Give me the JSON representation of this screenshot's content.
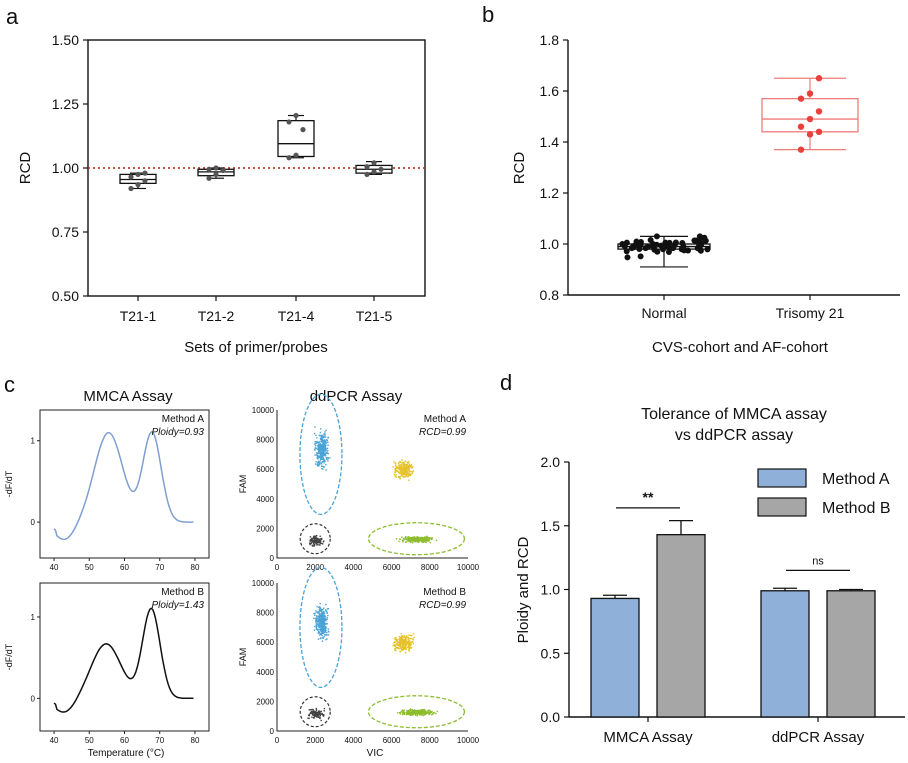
{
  "colors": {
    "ref_line": "#c0392b",
    "normal": "#111111",
    "trisomy": "#e8413c",
    "trisomy_box": "#f07b7b",
    "blue_trace": "#7f9fd0",
    "method_a": "#8fb0d8",
    "method_b": "#a6a6a6",
    "cluster_blue": "#4aa3d6",
    "cluster_yellow": "#e6c22a",
    "cluster_green": "#8dbd2f",
    "cluster_dark": "#444444"
  },
  "chart_data": [
    {
      "panel": "a",
      "type": "box",
      "categories": [
        "T21-1",
        "T21-2",
        "T21-4",
        "T21-5"
      ],
      "xlabel": "Sets of primer/probes",
      "ylabel": "RCD",
      "ylim": [
        0.5,
        1.5
      ],
      "yticks": [
        "0.50",
        "0.75",
        "1.00",
        "1.25",
        "1.50"
      ],
      "yticks_num": [
        0.5,
        0.75,
        1.0,
        1.25,
        1.5
      ],
      "reference_line": 1.0,
      "boxes": [
        {
          "min": 0.92,
          "q1": 0.94,
          "median": 0.955,
          "q3": 0.975,
          "max": 0.98,
          "points": [
            0.92,
            0.935,
            0.95,
            0.965,
            0.975,
            0.98
          ]
        },
        {
          "min": 0.96,
          "q1": 0.97,
          "median": 0.985,
          "q3": 0.995,
          "max": 1.0,
          "points": [
            0.96,
            0.975,
            0.99,
            0.995,
            1.0
          ]
        },
        {
          "min": 1.04,
          "q1": 1.045,
          "median": 1.095,
          "q3": 1.185,
          "max": 1.205,
          "points": [
            1.04,
            1.05,
            1.15,
            1.18,
            1.205
          ]
        },
        {
          "min": 0.975,
          "q1": 0.98,
          "median": 0.995,
          "q3": 1.01,
          "max": 1.025,
          "points": [
            0.975,
            0.985,
            0.995,
            1.005,
            1.02
          ]
        }
      ]
    },
    {
      "panel": "b",
      "type": "box",
      "categories": [
        "Normal",
        "Trisomy 21"
      ],
      "xlabel": "CVS-cohort and AF-cohort",
      "ylabel": "RCD",
      "ylim": [
        0.8,
        1.8
      ],
      "yticks": [
        "0.8",
        "1.0",
        "1.2",
        "1.4",
        "1.6",
        "1.8"
      ],
      "yticks_num": [
        0.8,
        1.0,
        1.2,
        1.4,
        1.6,
        1.8
      ],
      "boxes": [
        {
          "min": 0.91,
          "q1": 0.98,
          "median": 0.99,
          "q3": 1.0,
          "max": 1.03,
          "n_points": 60,
          "spread": 0.03
        },
        {
          "min": 1.37,
          "q1": 1.44,
          "median": 1.49,
          "q3": 1.57,
          "max": 1.65,
          "points": [
            1.37,
            1.43,
            1.44,
            1.46,
            1.49,
            1.52,
            1.57,
            1.59,
            1.65
          ]
        }
      ]
    },
    {
      "panel": "c",
      "type": "line+scatter",
      "mmca_title": "MMCA Assay",
      "ddpcr_title": "ddPCR Assay",
      "mmca_xlabel": "Temperature (°C)",
      "mmca_ylabel": "-dF/dT",
      "mmca_xticks": [
        "40",
        "50",
        "60",
        "70",
        "80"
      ],
      "mmca_xlim": [
        38,
        82
      ],
      "mmca_yticks": [
        "0",
        "1"
      ],
      "ddpcr_xlabel": "VIC",
      "ddpcr_ylabel": "FAM",
      "ddpcr_xticks": [
        "0",
        "2000",
        "4000",
        "6000",
        "8000",
        "10000"
      ],
      "ddpcr_yticks": [
        "0",
        "2000",
        "4000",
        "6000",
        "8000",
        "10000"
      ],
      "rows": [
        {
          "method": "Method A",
          "mmca_stat": "Ploidy=0.93",
          "ddpcr_stat": "RCD=0.99",
          "peaks": [
            {
              "t": 55.5,
              "h": 1.1,
              "w": 4.0
            },
            {
              "t": 67.8,
              "h": 1.1,
              "w": 2.6
            }
          ]
        },
        {
          "method": "Method B",
          "mmca_stat": "Ploidy=1.43",
          "ddpcr_stat": "RCD=0.99",
          "peaks": [
            {
              "t": 54.8,
              "h": 0.67,
              "w": 4.2
            },
            {
              "t": 67.6,
              "h": 1.1,
              "w": 2.5
            }
          ]
        }
      ],
      "clusters": [
        {
          "name": "blue",
          "cx": 2300,
          "cy": 7400,
          "sx": 250,
          "sy": 900,
          "n": 320
        },
        {
          "name": "yellow",
          "cx": 6600,
          "cy": 6000,
          "sx": 420,
          "sy": 420,
          "n": 260
        },
        {
          "name": "green",
          "cx": 7300,
          "cy": 1300,
          "sx": 650,
          "sy": 150,
          "n": 280
        },
        {
          "name": "dark",
          "cx": 2000,
          "cy": 1200,
          "sx": 300,
          "sy": 250,
          "n": 120
        }
      ]
    },
    {
      "panel": "d",
      "type": "bar",
      "title": "Tolerance of MMCA assay",
      "subtitle": "vs ddPCR assay",
      "categories": [
        "MMCA Assay",
        "ddPCR Assay"
      ],
      "ylabel": "Ploidy and RCD",
      "ylim": [
        0,
        2.0
      ],
      "yticks": [
        "0.0",
        "0.5",
        "1.0",
        "1.5",
        "2.0"
      ],
      "yticks_num": [
        0,
        0.5,
        1.0,
        1.5,
        2.0
      ],
      "series": [
        {
          "name": "Method A",
          "values": [
            0.93,
            0.99
          ],
          "errors": [
            0.025,
            0.02
          ]
        },
        {
          "name": "Method B",
          "values": [
            1.43,
            0.99
          ],
          "errors": [
            0.11,
            0.01
          ]
        }
      ],
      "significance": [
        "**",
        "ns"
      ]
    }
  ],
  "panel_labels": [
    "a",
    "b",
    "c",
    "d"
  ]
}
